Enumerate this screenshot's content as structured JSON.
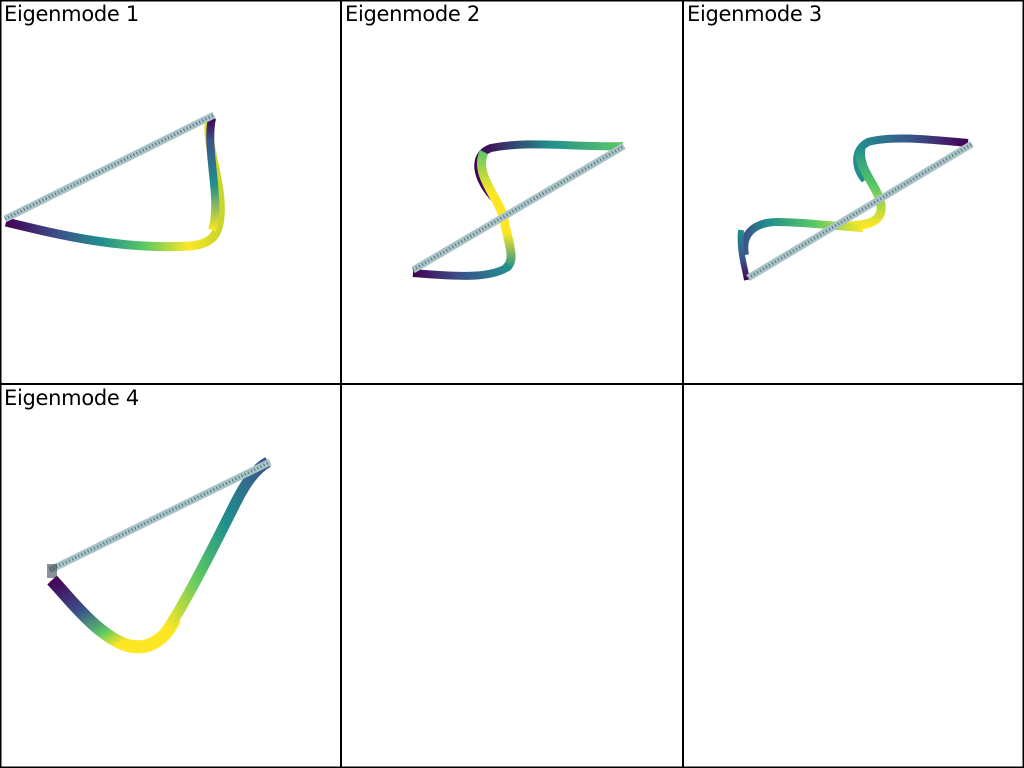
{
  "panels": [
    {
      "title": "Eigenmode 1"
    },
    {
      "title": "Eigenmode 2"
    },
    {
      "title": "Eigenmode 3"
    },
    {
      "title": "Eigenmode 4"
    },
    {
      "title": ""
    },
    {
      "title": ""
    }
  ],
  "colors": {
    "border": "#000000",
    "background": "#ffffff",
    "beam_undeformed": "#a9c4c8",
    "beam_mesh": "#3a4a50",
    "colormap": [
      "#440154",
      "#3b528b",
      "#21908d",
      "#5dc963",
      "#fde725"
    ]
  },
  "colormap_name": "viridis"
}
